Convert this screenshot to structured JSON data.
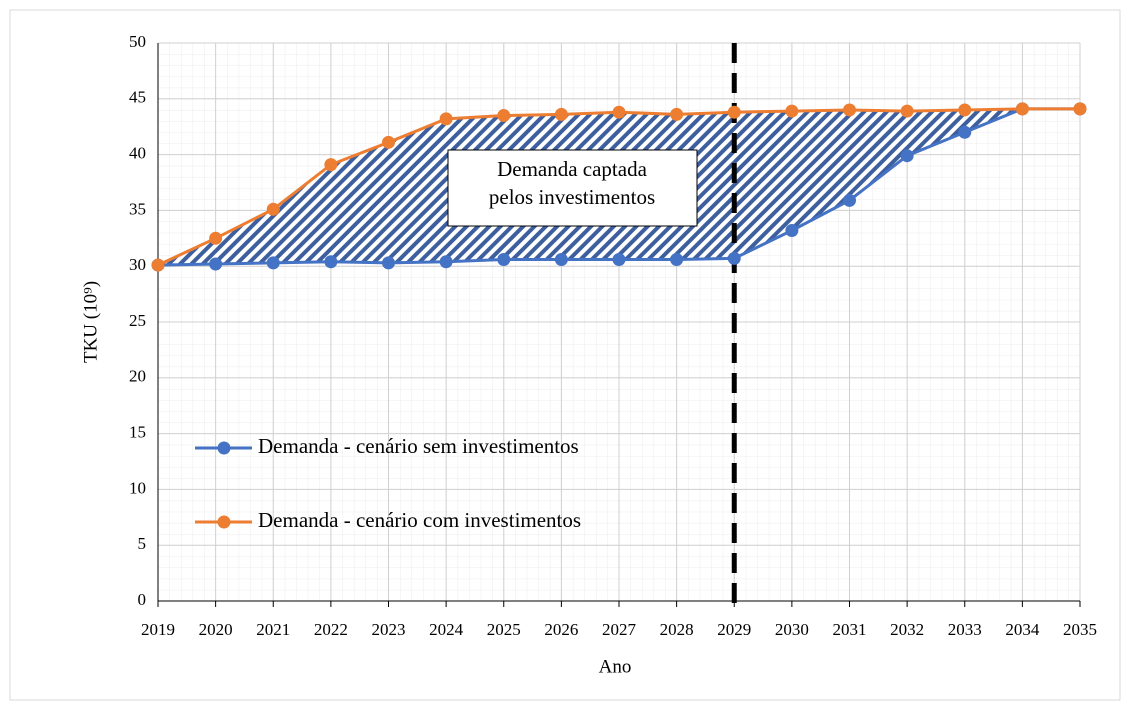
{
  "chart_data": {
    "type": "line",
    "x": [
      2019,
      2020,
      2021,
      2022,
      2023,
      2024,
      2025,
      2026,
      2027,
      2028,
      2029,
      2030,
      2031,
      2032,
      2033,
      2034,
      2035
    ],
    "series": [
      {
        "name": "Demanda - cenário sem investimentos",
        "color": "#4472c4",
        "values": [
          30.1,
          30.2,
          30.3,
          30.4,
          30.3,
          30.4,
          30.6,
          30.6,
          30.6,
          30.6,
          30.7,
          33.2,
          35.9,
          39.9,
          42.0,
          44.1,
          44.1
        ]
      },
      {
        "name": "Demanda - cenário com investimentos",
        "color": "#ed7d31",
        "values": [
          30.1,
          32.5,
          35.1,
          39.1,
          41.1,
          43.2,
          43.5,
          43.6,
          43.8,
          43.6,
          43.8,
          43.9,
          44.0,
          43.9,
          44.0,
          44.1,
          44.1
        ]
      }
    ],
    "xlim": [
      2019,
      2035
    ],
    "xticks": [
      2019,
      2020,
      2021,
      2022,
      2023,
      2024,
      2025,
      2026,
      2027,
      2028,
      2029,
      2030,
      2031,
      2032,
      2033,
      2034,
      2035
    ],
    "ylim": [
      0,
      50
    ],
    "yticks": [
      0,
      5,
      10,
      15,
      20,
      25,
      30,
      35,
      40,
      45,
      50
    ],
    "xlabel": "Ano",
    "ylabel": "TKU (10⁹)",
    "annotation": [
      "Demanda captada",
      "pelos investimentos"
    ],
    "vline": 2029,
    "grid": true,
    "legend": "lower left"
  }
}
